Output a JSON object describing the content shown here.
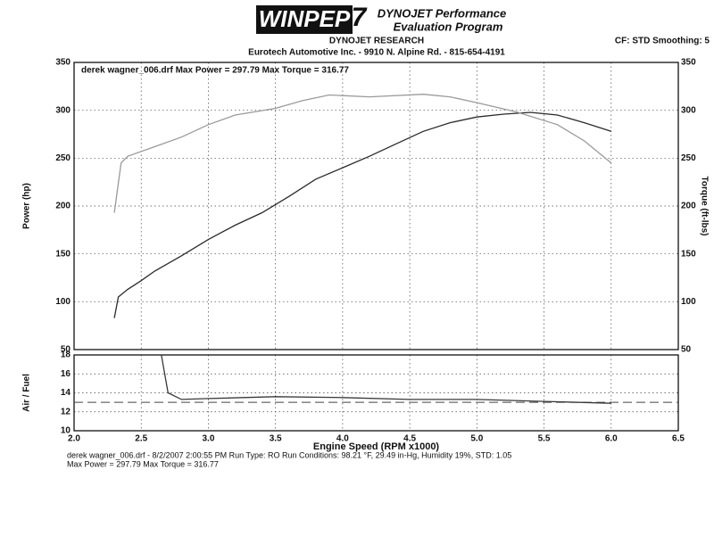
{
  "header": {
    "logo": "WINPEP",
    "logo_number": "7",
    "product_line1": "DYNOJET Performance",
    "product_line2": "Evaluation Program",
    "company": "DYNOJET RESEARCH",
    "shop": "Eurotech Automotive Inc. - 9910 N. Alpine Rd. - 815-654-4191",
    "settings": "CF: STD  Smoothing: 5"
  },
  "chart_data": [
    {
      "type": "line",
      "legend_text": "derek wagner_006.drf Max Power = 297.79    Max Torque = 316.77",
      "ylabel": "Power (hp)",
      "y2label": "Torque (ft-lbs)",
      "grid": true,
      "xlim": [
        2.0,
        6.5
      ],
      "xticks": [
        {
          "value": 2.0,
          "label": "2.0"
        },
        2.5,
        {
          "value": 3.0,
          "label": "3.0"
        },
        3.5,
        {
          "value": 4.0,
          "label": "4.0"
        },
        4.5,
        {
          "value": 5.0,
          "label": "5.0"
        },
        5.5,
        {
          "value": 6.0,
          "label": "6.0"
        },
        6.5
      ],
      "ylim": [
        50,
        350
      ],
      "yticks": [
        50,
        100,
        150,
        200,
        250,
        300,
        350
      ],
      "y2lim": [
        50,
        350
      ],
      "y2ticks": [
        50,
        100,
        150,
        200,
        250,
        300,
        350
      ],
      "series": [
        {
          "name": "Power",
          "color": "#2a2a2a",
          "x": [
            2.3,
            2.33,
            2.4,
            2.5,
            2.6,
            2.8,
            3.0,
            3.2,
            3.4,
            3.6,
            3.8,
            4.0,
            4.2,
            4.4,
            4.6,
            4.8,
            5.0,
            5.2,
            5.4,
            5.6,
            5.8,
            6.0
          ],
          "values": [
            83,
            105,
            113,
            122,
            132,
            148,
            165,
            180,
            193,
            210,
            228,
            240,
            252,
            265,
            278,
            287,
            293,
            296,
            297.79,
            295,
            287,
            278
          ]
        },
        {
          "name": "Torque",
          "color": "#9a9a9a",
          "axis": "y2",
          "x": [
            2.3,
            2.35,
            2.4,
            2.6,
            2.8,
            3.0,
            3.2,
            3.5,
            3.7,
            3.9,
            4.2,
            4.6,
            4.8,
            5.0,
            5.3,
            5.6,
            5.8,
            6.0
          ],
          "values": [
            193,
            245,
            252,
            262,
            272,
            285,
            295,
            302,
            310,
            316,
            314,
            316.77,
            314,
            308,
            298,
            285,
            268,
            245
          ]
        }
      ]
    },
    {
      "type": "line",
      "ylabel": "Air / Fuel",
      "xlabel": "Engine Speed (RPM x1000)",
      "grid": true,
      "xlim": [
        2.0,
        6.5
      ],
      "xticks": [
        {
          "value": 2.0,
          "label": "2.0"
        },
        2.5,
        {
          "value": 3.0,
          "label": "3.0"
        },
        3.5,
        {
          "value": 4.0,
          "label": "4.0"
        },
        4.5,
        {
          "value": 5.0,
          "label": "5.0"
        },
        5.5,
        {
          "value": 6.0,
          "label": "6.0"
        },
        6.5
      ],
      "ylim": [
        10,
        18
      ],
      "yticks": [
        10,
        12,
        14,
        16,
        18
      ],
      "reference": 13,
      "series": [
        {
          "name": "Air/Fuel",
          "color": "#3a3a3a",
          "x": [
            2.65,
            2.7,
            2.8,
            3.0,
            3.5,
            4.0,
            4.5,
            5.0,
            5.5,
            6.0
          ],
          "values": [
            18,
            14,
            13.3,
            13.4,
            13.6,
            13.5,
            13.3,
            13.3,
            13.1,
            12.9
          ]
        }
      ]
    }
  ],
  "footer": {
    "line1": "derek wagner_006.drf - 8/2/2007 2:00:55 PM  Run Type: RO  Run Conditions: 98.21 °F, 29.49 in-Hg,  Humidity  19%,  STD: 1.05",
    "line2": "Max Power = 297.79  Max Torque = 316.77"
  }
}
